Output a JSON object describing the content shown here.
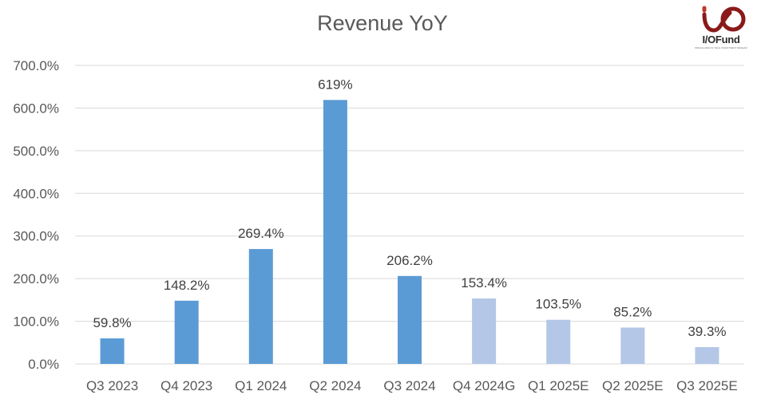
{
  "logo": {
    "text": "I/OFund",
    "tagline": "SPECIALIZED IN TECH INVESTMENT RESEARCH"
  },
  "chart_data": {
    "type": "bar",
    "title": "Revenue YoY",
    "categories": [
      "Q3 2023",
      "Q4 2023",
      "Q1 2024",
      "Q2 2024",
      "Q3 2024",
      "Q4 2024G",
      "Q1 2025E",
      "Q2 2025E",
      "Q3 2025E"
    ],
    "values": [
      59.8,
      148.2,
      269.4,
      619,
      206.2,
      153.4,
      103.5,
      85.2,
      39.3
    ],
    "data_labels": [
      "59.8%",
      "148.2%",
      "269.4%",
      "619%",
      "206.2%",
      "153.4%",
      "103.5%",
      "85.2%",
      "39.3%"
    ],
    "kinds": [
      "actual",
      "actual",
      "actual",
      "actual",
      "actual",
      "estimate",
      "estimate",
      "estimate",
      "estimate"
    ],
    "colors": {
      "actual": "#5b9bd5",
      "estimate": "#b4c7e7",
      "grid": "#d9d9d9",
      "text": "#595959"
    },
    "ylim": [
      0,
      700
    ],
    "yticks": [
      0,
      100,
      200,
      300,
      400,
      500,
      600,
      700
    ],
    "ytick_labels": [
      "0.0%",
      "100.0%",
      "200.0%",
      "300.0%",
      "400.0%",
      "500.0%",
      "600.0%",
      "700.0%"
    ],
    "grid": true,
    "legend": "none"
  }
}
